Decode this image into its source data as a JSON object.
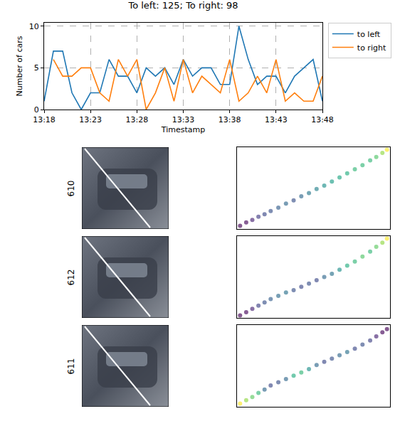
{
  "chart_data": [
    {
      "type": "line",
      "title": "To left: 125; To right: 98",
      "x_label": "Timestamp",
      "y_label": "Number of cars",
      "categories": [
        "13:18",
        null,
        null,
        null,
        null,
        "13:23",
        null,
        null,
        null,
        null,
        "13:28",
        null,
        null,
        null,
        null,
        "13:33",
        null,
        null,
        null,
        null,
        "13:38",
        null,
        null,
        null,
        null,
        "13:43",
        null,
        null,
        null,
        null,
        "13:48"
      ],
      "series": [
        {
          "name": "to left",
          "color": "#1f77b4",
          "values": [
            1,
            7,
            7,
            2,
            0,
            2,
            2,
            6,
            4,
            4,
            2,
            5,
            4,
            5,
            3,
            6,
            4,
            5,
            5,
            3,
            3,
            10,
            6,
            3,
            4,
            4,
            2,
            4,
            5,
            6,
            1
          ]
        },
        {
          "name": "to right",
          "color": "#ff7f0e",
          "values": [
            null,
            6,
            4,
            4,
            5,
            5,
            2,
            1,
            6,
            4,
            6,
            0,
            2,
            5,
            1,
            6,
            2,
            4,
            3,
            2,
            6,
            1,
            2,
            4,
            2,
            6,
            1,
            2,
            1,
            1,
            4
          ]
        }
      ],
      "ylim": [
        0,
        10.4
      ],
      "yticks": [
        0,
        5,
        10
      ],
      "grid": true,
      "legend": "right"
    },
    {
      "type": "scatter",
      "y_label": "610",
      "x": [
        0.02,
        0.06,
        0.1,
        0.14,
        0.18,
        0.22,
        0.27,
        0.32,
        0.37,
        0.42,
        0.47,
        0.52,
        0.57,
        0.62,
        0.67,
        0.72,
        0.77,
        0.82,
        0.87,
        0.91,
        0.95,
        0.98
      ],
      "values": [
        0.04,
        0.08,
        0.11,
        0.15,
        0.18,
        0.22,
        0.26,
        0.31,
        0.35,
        0.4,
        0.44,
        0.49,
        0.53,
        0.58,
        0.63,
        0.68,
        0.73,
        0.78,
        0.84,
        0.88,
        0.93,
        0.97
      ],
      "colors": [
        "#440154",
        "#46085c",
        "#482475",
        "#433e85",
        "#3e4a89",
        "#3b528b",
        "#355f8d",
        "#31688e",
        "#3b528b",
        "#31688e",
        "#2a788e",
        "#26828e",
        "#21918c",
        "#1f9e89",
        "#22a884",
        "#27ad81",
        "#35b779",
        "#35b779",
        "#35b779",
        "#52c569",
        "#90d743",
        "#fde725"
      ],
      "xlim": [
        0,
        1
      ],
      "ylim": [
        0,
        1
      ],
      "xticks": [],
      "yticks": [],
      "tick_labels": false
    },
    {
      "type": "scatter",
      "y_label": "612",
      "x": [
        0.02,
        0.06,
        0.1,
        0.14,
        0.18,
        0.22,
        0.27,
        0.32,
        0.37,
        0.42,
        0.47,
        0.52,
        0.57,
        0.62,
        0.67,
        0.72,
        0.77,
        0.82,
        0.87,
        0.91,
        0.95,
        0.98
      ],
      "values": [
        0.03,
        0.07,
        0.11,
        0.15,
        0.19,
        0.23,
        0.27,
        0.31,
        0.34,
        0.38,
        0.42,
        0.46,
        0.5,
        0.54,
        0.59,
        0.64,
        0.69,
        0.75,
        0.81,
        0.87,
        0.92,
        0.97
      ],
      "colors": [
        "#440154",
        "#46085c",
        "#482475",
        "#414487",
        "#3b528b",
        "#355f8d",
        "#2f6c8e",
        "#2c728e",
        "#3b528b",
        "#3e4a89",
        "#3b528b",
        "#3e4a89",
        "#31688e",
        "#2c728e",
        "#21918c",
        "#27ad81",
        "#35b779",
        "#52c569",
        "#35b779",
        "#5ec962",
        "#90d743",
        "#fde725"
      ],
      "xlim": [
        0,
        1
      ],
      "ylim": [
        0,
        1
      ],
      "xticks": [],
      "yticks": [],
      "tick_labels": false
    },
    {
      "type": "scatter",
      "y_label": "611",
      "x": [
        0.02,
        0.06,
        0.1,
        0.14,
        0.18,
        0.22,
        0.27,
        0.32,
        0.37,
        0.42,
        0.47,
        0.52,
        0.57,
        0.62,
        0.67,
        0.72,
        0.77,
        0.82,
        0.87,
        0.91,
        0.95,
        0.98
      ],
      "values": [
        0.04,
        0.08,
        0.12,
        0.17,
        0.21,
        0.26,
        0.3,
        0.34,
        0.38,
        0.42,
        0.46,
        0.51,
        0.55,
        0.59,
        0.63,
        0.67,
        0.71,
        0.76,
        0.81,
        0.86,
        0.91,
        0.95
      ],
      "colors": [
        "#fde725",
        "#90d743",
        "#5ec962",
        "#35b779",
        "#31688e",
        "#3e4a89",
        "#3b528b",
        "#31688e",
        "#27ad81",
        "#35b779",
        "#21918c",
        "#31688e",
        "#3e4a89",
        "#3b528b",
        "#31688e",
        "#2c728e",
        "#3e4a89",
        "#3b528b",
        "#414487",
        "#482475",
        "#46085c",
        "#440154"
      ],
      "xlim": [
        0,
        1
      ],
      "ylim": [
        0,
        1
      ],
      "xticks": [],
      "yticks": [],
      "tick_labels": false
    }
  ]
}
